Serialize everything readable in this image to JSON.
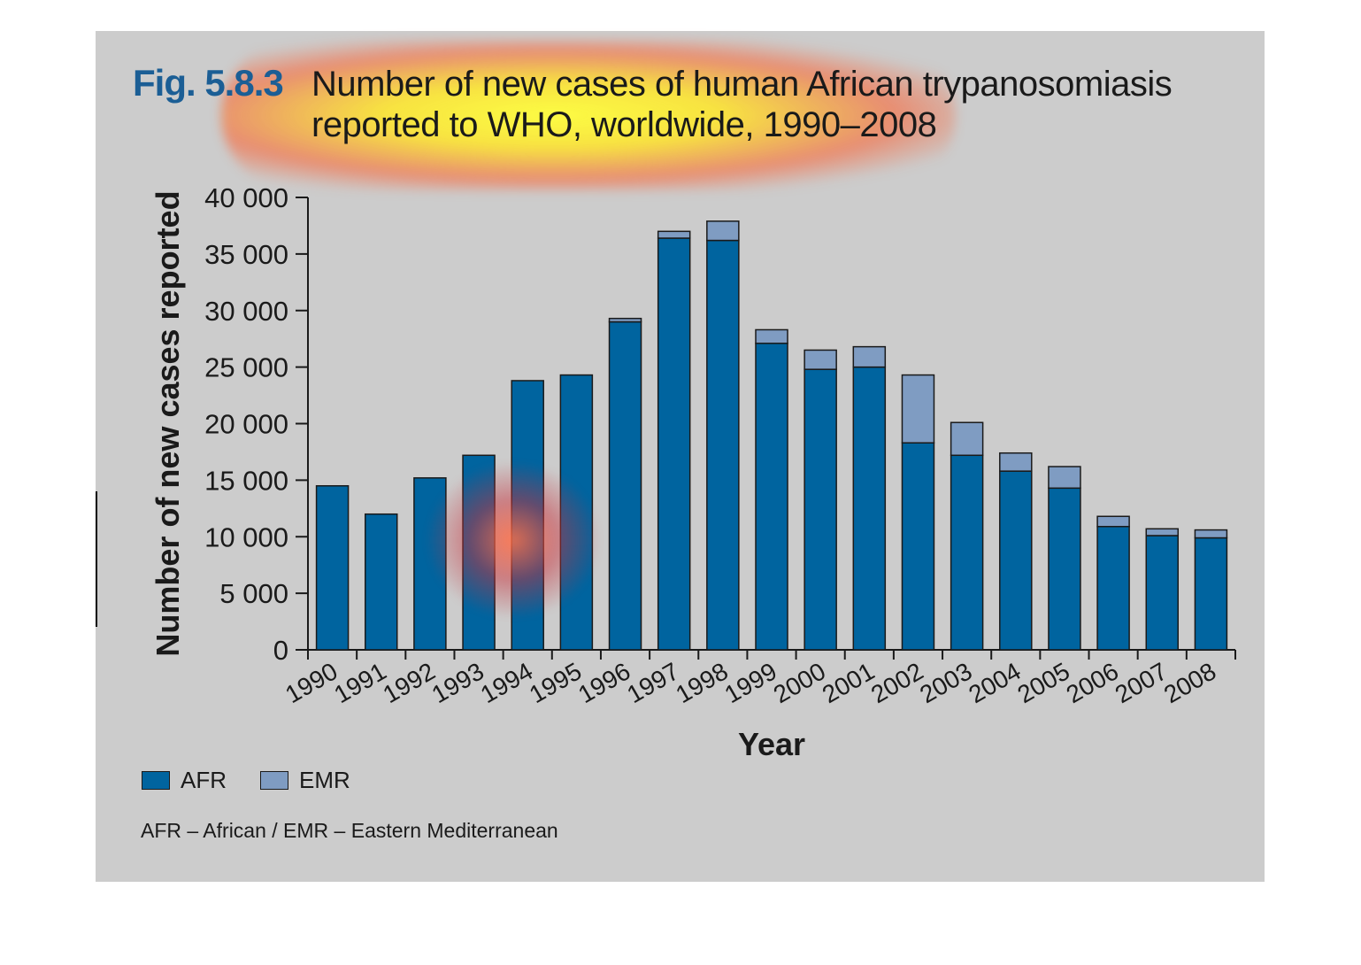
{
  "figure": {
    "label": "Fig. 5.8.3",
    "title": "Number of new cases of human African trypanosomiasis reported to WHO, worldwide, 1990–2008"
  },
  "legend": {
    "items": [
      {
        "label": "AFR",
        "color": "#00649f"
      },
      {
        "label": "EMR",
        "color": "#7f9cc2"
      }
    ]
  },
  "footnote": "AFR – African / EMR – Eastern Mediterranean",
  "chart_data": {
    "type": "bar",
    "stacked": true,
    "title": "Number of new cases of human African trypanosomiasis reported to WHO, worldwide, 1990–2008",
    "xlabel": "Year",
    "ylabel": "Number of new cases reported",
    "ylim": [
      0,
      40000
    ],
    "yticks": [
      0,
      5000,
      10000,
      15000,
      20000,
      25000,
      30000,
      35000,
      40000
    ],
    "ytick_labels": [
      "0",
      "5 000",
      "10 000",
      "15 000",
      "20 000",
      "25 000",
      "30 000",
      "35 000",
      "40 000"
    ],
    "categories": [
      "1990",
      "1991",
      "1992",
      "1993",
      "1994",
      "1995",
      "1996",
      "1997",
      "1998",
      "1999",
      "2000",
      "2001",
      "2002",
      "2003",
      "2004",
      "2005",
      "2006",
      "2007",
      "2008"
    ],
    "series": [
      {
        "name": "AFR",
        "color": "#00649f",
        "values": [
          14500,
          12000,
          15200,
          17200,
          23800,
          24300,
          29000,
          36400,
          36200,
          27100,
          24800,
          25000,
          18300,
          17200,
          15800,
          14300,
          10900,
          10100,
          9900
        ]
      },
      {
        "name": "EMR",
        "color": "#7f9cc2",
        "values": [
          0,
          0,
          0,
          0,
          0,
          0,
          300,
          600,
          1700,
          1200,
          1700,
          1800,
          6000,
          2900,
          1600,
          1900,
          900,
          600,
          700
        ]
      }
    ],
    "grid": false,
    "legend_position": "bottom-left"
  }
}
